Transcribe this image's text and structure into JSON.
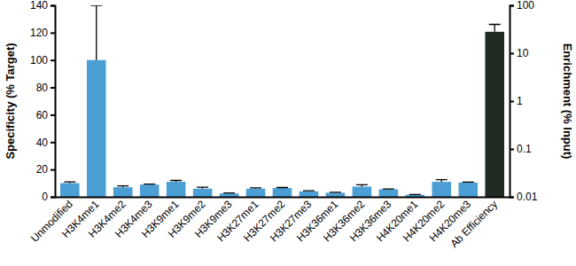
{
  "chart_data": {
    "type": "bar",
    "y_label": "Specificity (% Target)",
    "y2_label": "Enrichment (% Input)",
    "categories": [
      "Unmodified",
      "H3K4me1",
      "H3K4me2",
      "H3K4me3",
      "H3K9me1",
      "H3K9me2",
      "H3K9me3",
      "H3K27me1",
      "H3K27me2",
      "H3K27me3",
      "H3K36me1",
      "H3K36me2",
      "H3K36me3",
      "H4K20me1",
      "H4K20me2",
      "H4K20me3",
      "Ab Efficiency"
    ],
    "series": [
      {
        "color": "#4b9fd5",
        "values": [
          10,
          100,
          7,
          9,
          11,
          6,
          2.5,
          6,
          6.5,
          4,
          3,
          7.5,
          5.5,
          1.5,
          11,
          10.5,
          null
        ],
        "errors": [
          1,
          40,
          1,
          0.3,
          1,
          1,
          0.3,
          0.5,
          0.3,
          0.5,
          0.3,
          1.3,
          0.3,
          0.2,
          1.5,
          0.3,
          null
        ]
      },
      {
        "color": "#1f2b22",
        "axis": "y2",
        "values": [
          null,
          null,
          null,
          null,
          null,
          null,
          null,
          null,
          null,
          null,
          null,
          null,
          null,
          null,
          null,
          null,
          28
        ],
        "errors": [
          null,
          null,
          null,
          null,
          null,
          null,
          null,
          null,
          null,
          null,
          null,
          null,
          null,
          null,
          null,
          null,
          12
        ]
      }
    ],
    "ylim": [
      0,
      140
    ],
    "yticks": [
      0,
      20,
      40,
      60,
      80,
      100,
      120,
      140
    ],
    "y2lim": [
      0.01,
      100
    ],
    "y2ticks": [
      0.01,
      0.1,
      1,
      10,
      100
    ],
    "log": "y2"
  }
}
